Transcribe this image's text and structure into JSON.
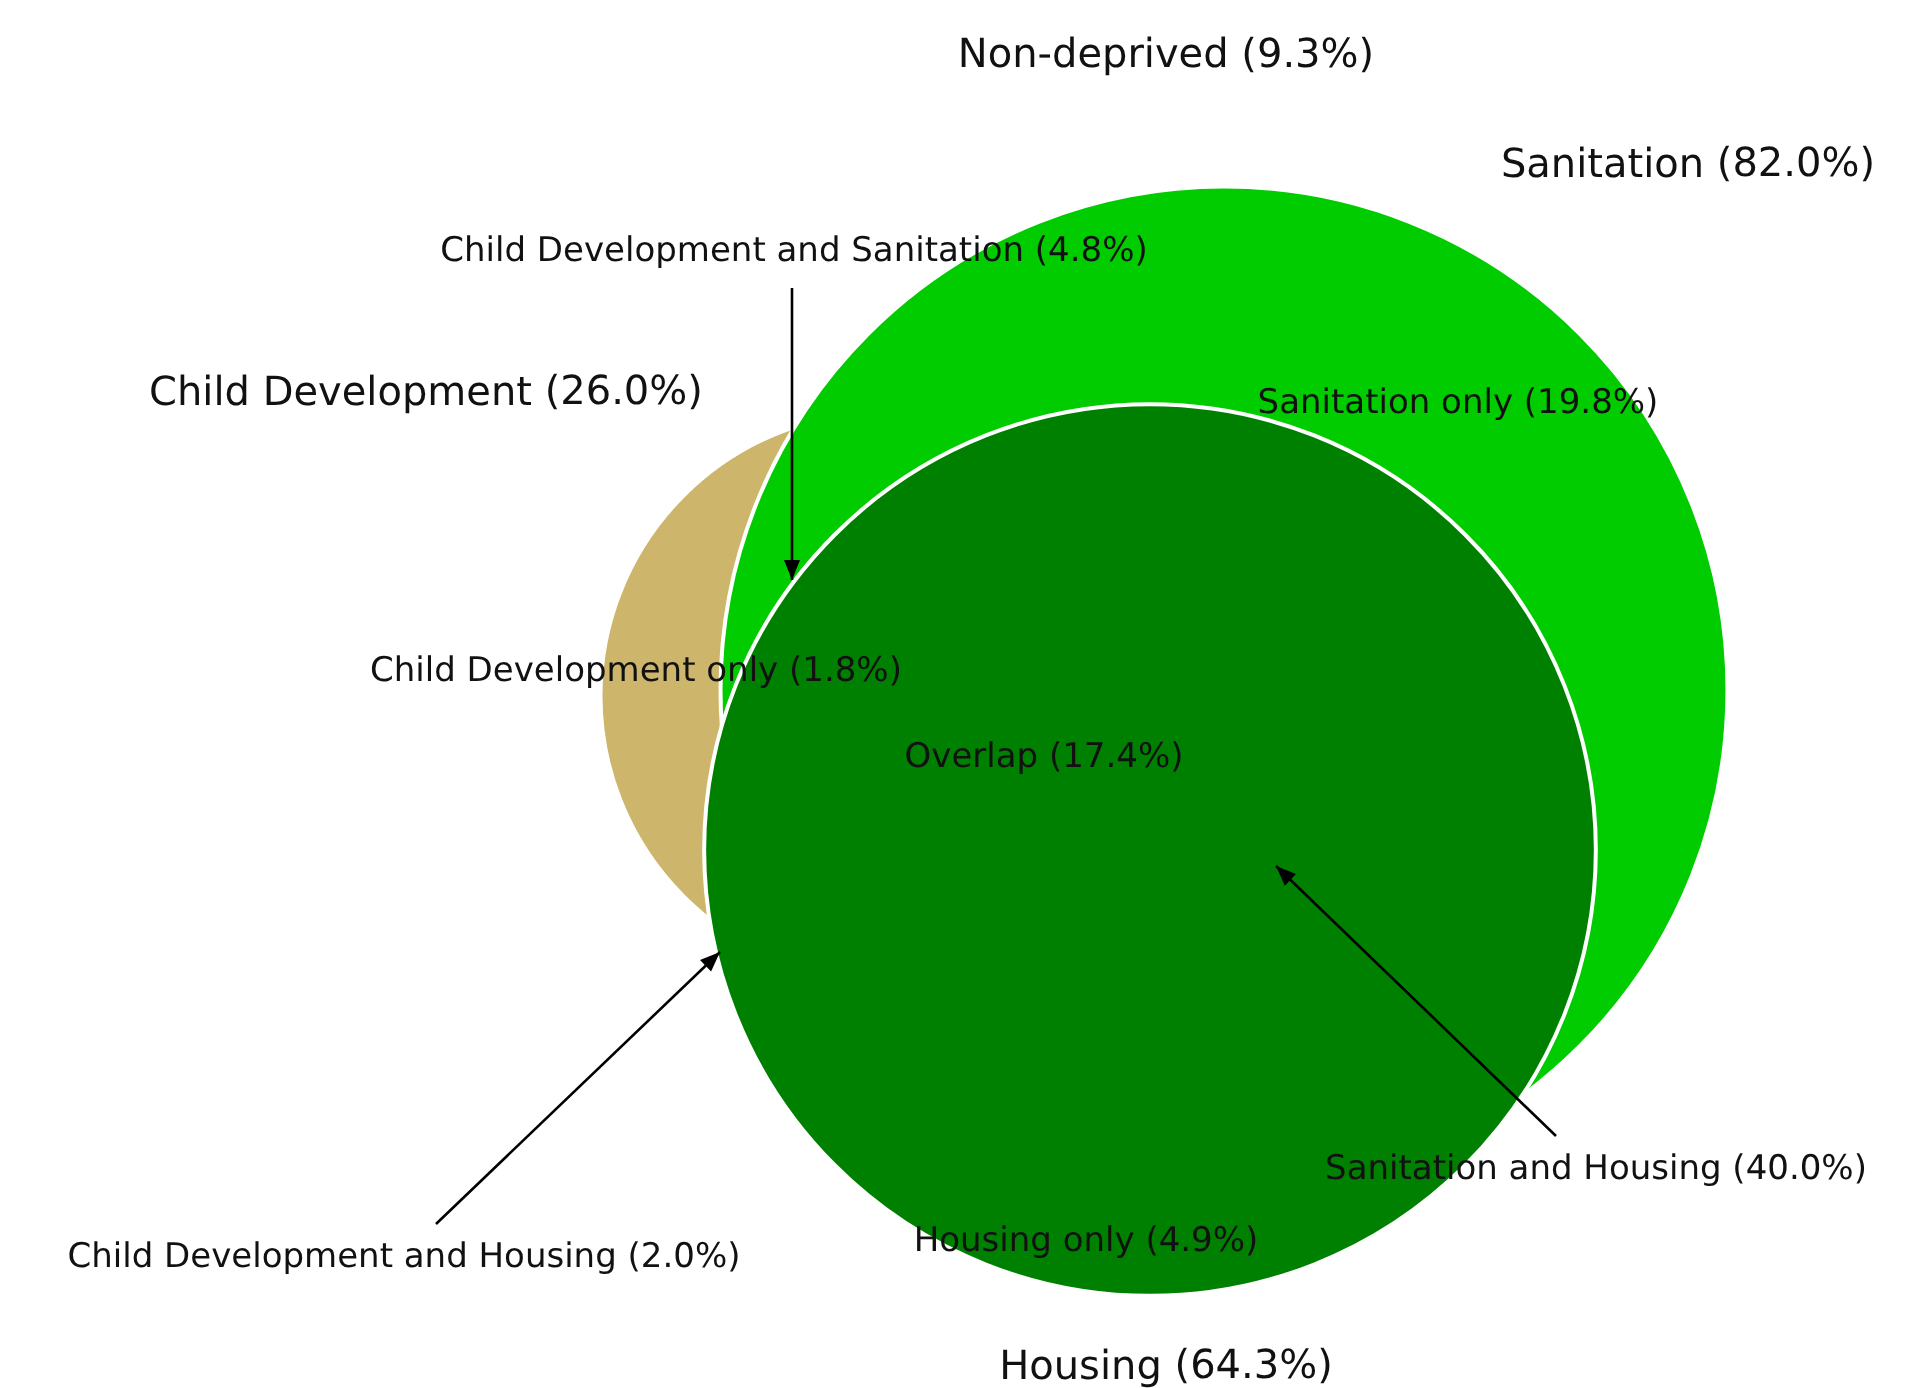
{
  "chart_data": {
    "type": "other",
    "categories": [
      "Child Development",
      "Sanitation",
      "Housing"
    ],
    "values": [
      26.0,
      82.0,
      64.3
    ],
    "value_labels": [
      "(26.0%)",
      "(82.0%)",
      "(64.3%)"
    ],
    "colors": [
      "#cdb56b",
      "#00cc00",
      "#008000"
    ],
    "annotations": [
      "Non-deprived (9.3%)",
      "Child Development and Sanitation (4.8%)",
      "Child Development only (1.8%)",
      "Sanitation only (19.8%)",
      "Overlap (17.4%)",
      "Child Development and Housing (2.0%)",
      "Sanitation and Housing (40.0%)",
      "Housing only (4.9%)"
    ]
  }
}
